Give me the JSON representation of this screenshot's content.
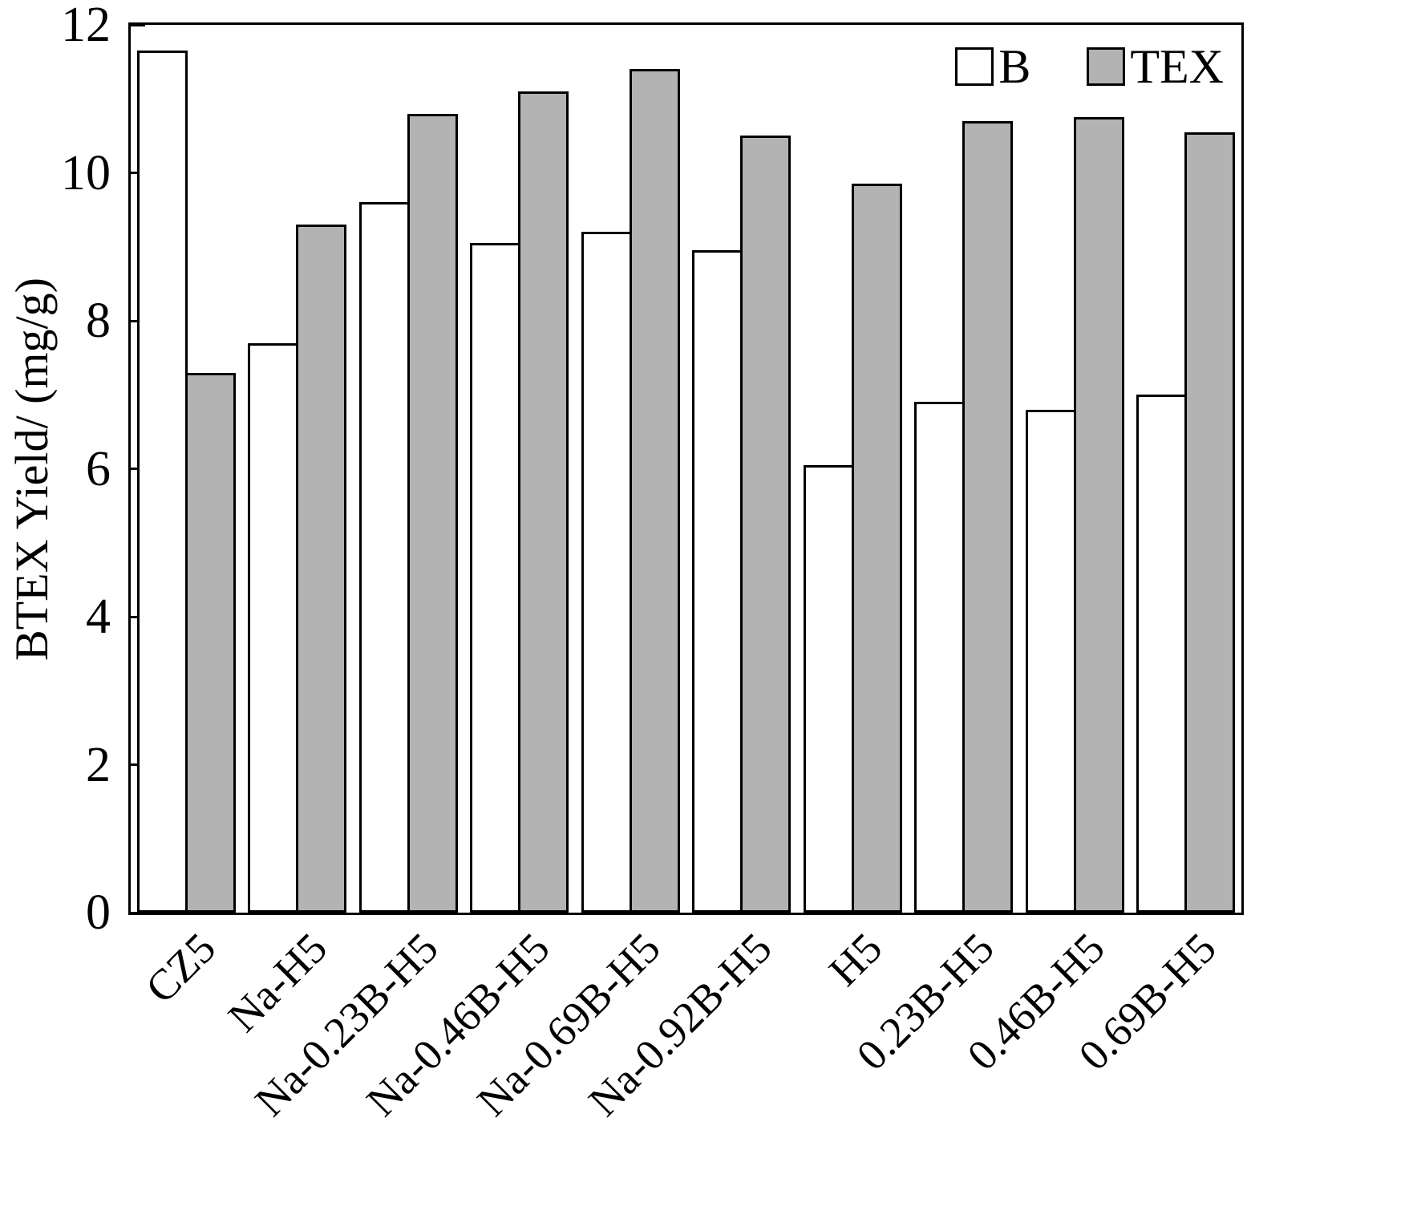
{
  "chart_data": {
    "type": "bar",
    "title": "",
    "xlabel": "",
    "ylabel": "BTEX Yield/ (mg/g)",
    "ylim": [
      0,
      12
    ],
    "yticks": [
      0,
      2,
      4,
      6,
      8,
      10,
      12
    ],
    "grid": false,
    "legend_position": "top-right",
    "bar_edge_color": "#000000",
    "categories": [
      "CZ5",
      "Na-H5",
      "Na-0.23B-H5",
      "Na-0.46B-H5",
      "Na-0.69B-H5",
      "Na-0.92B-H5",
      "H5",
      "0.23B-H5",
      "0.46B-H5",
      "0.69B-H5"
    ],
    "series": [
      {
        "name": "B",
        "color": "#ffffff",
        "values": [
          11.65,
          7.7,
          9.6,
          9.05,
          9.2,
          8.95,
          6.05,
          6.9,
          6.8,
          7.0
        ]
      },
      {
        "name": "TEX",
        "color": "#b3b3b3",
        "values": [
          7.3,
          9.3,
          10.8,
          11.1,
          11.4,
          10.5,
          9.85,
          10.7,
          10.75,
          10.55
        ]
      }
    ]
  }
}
